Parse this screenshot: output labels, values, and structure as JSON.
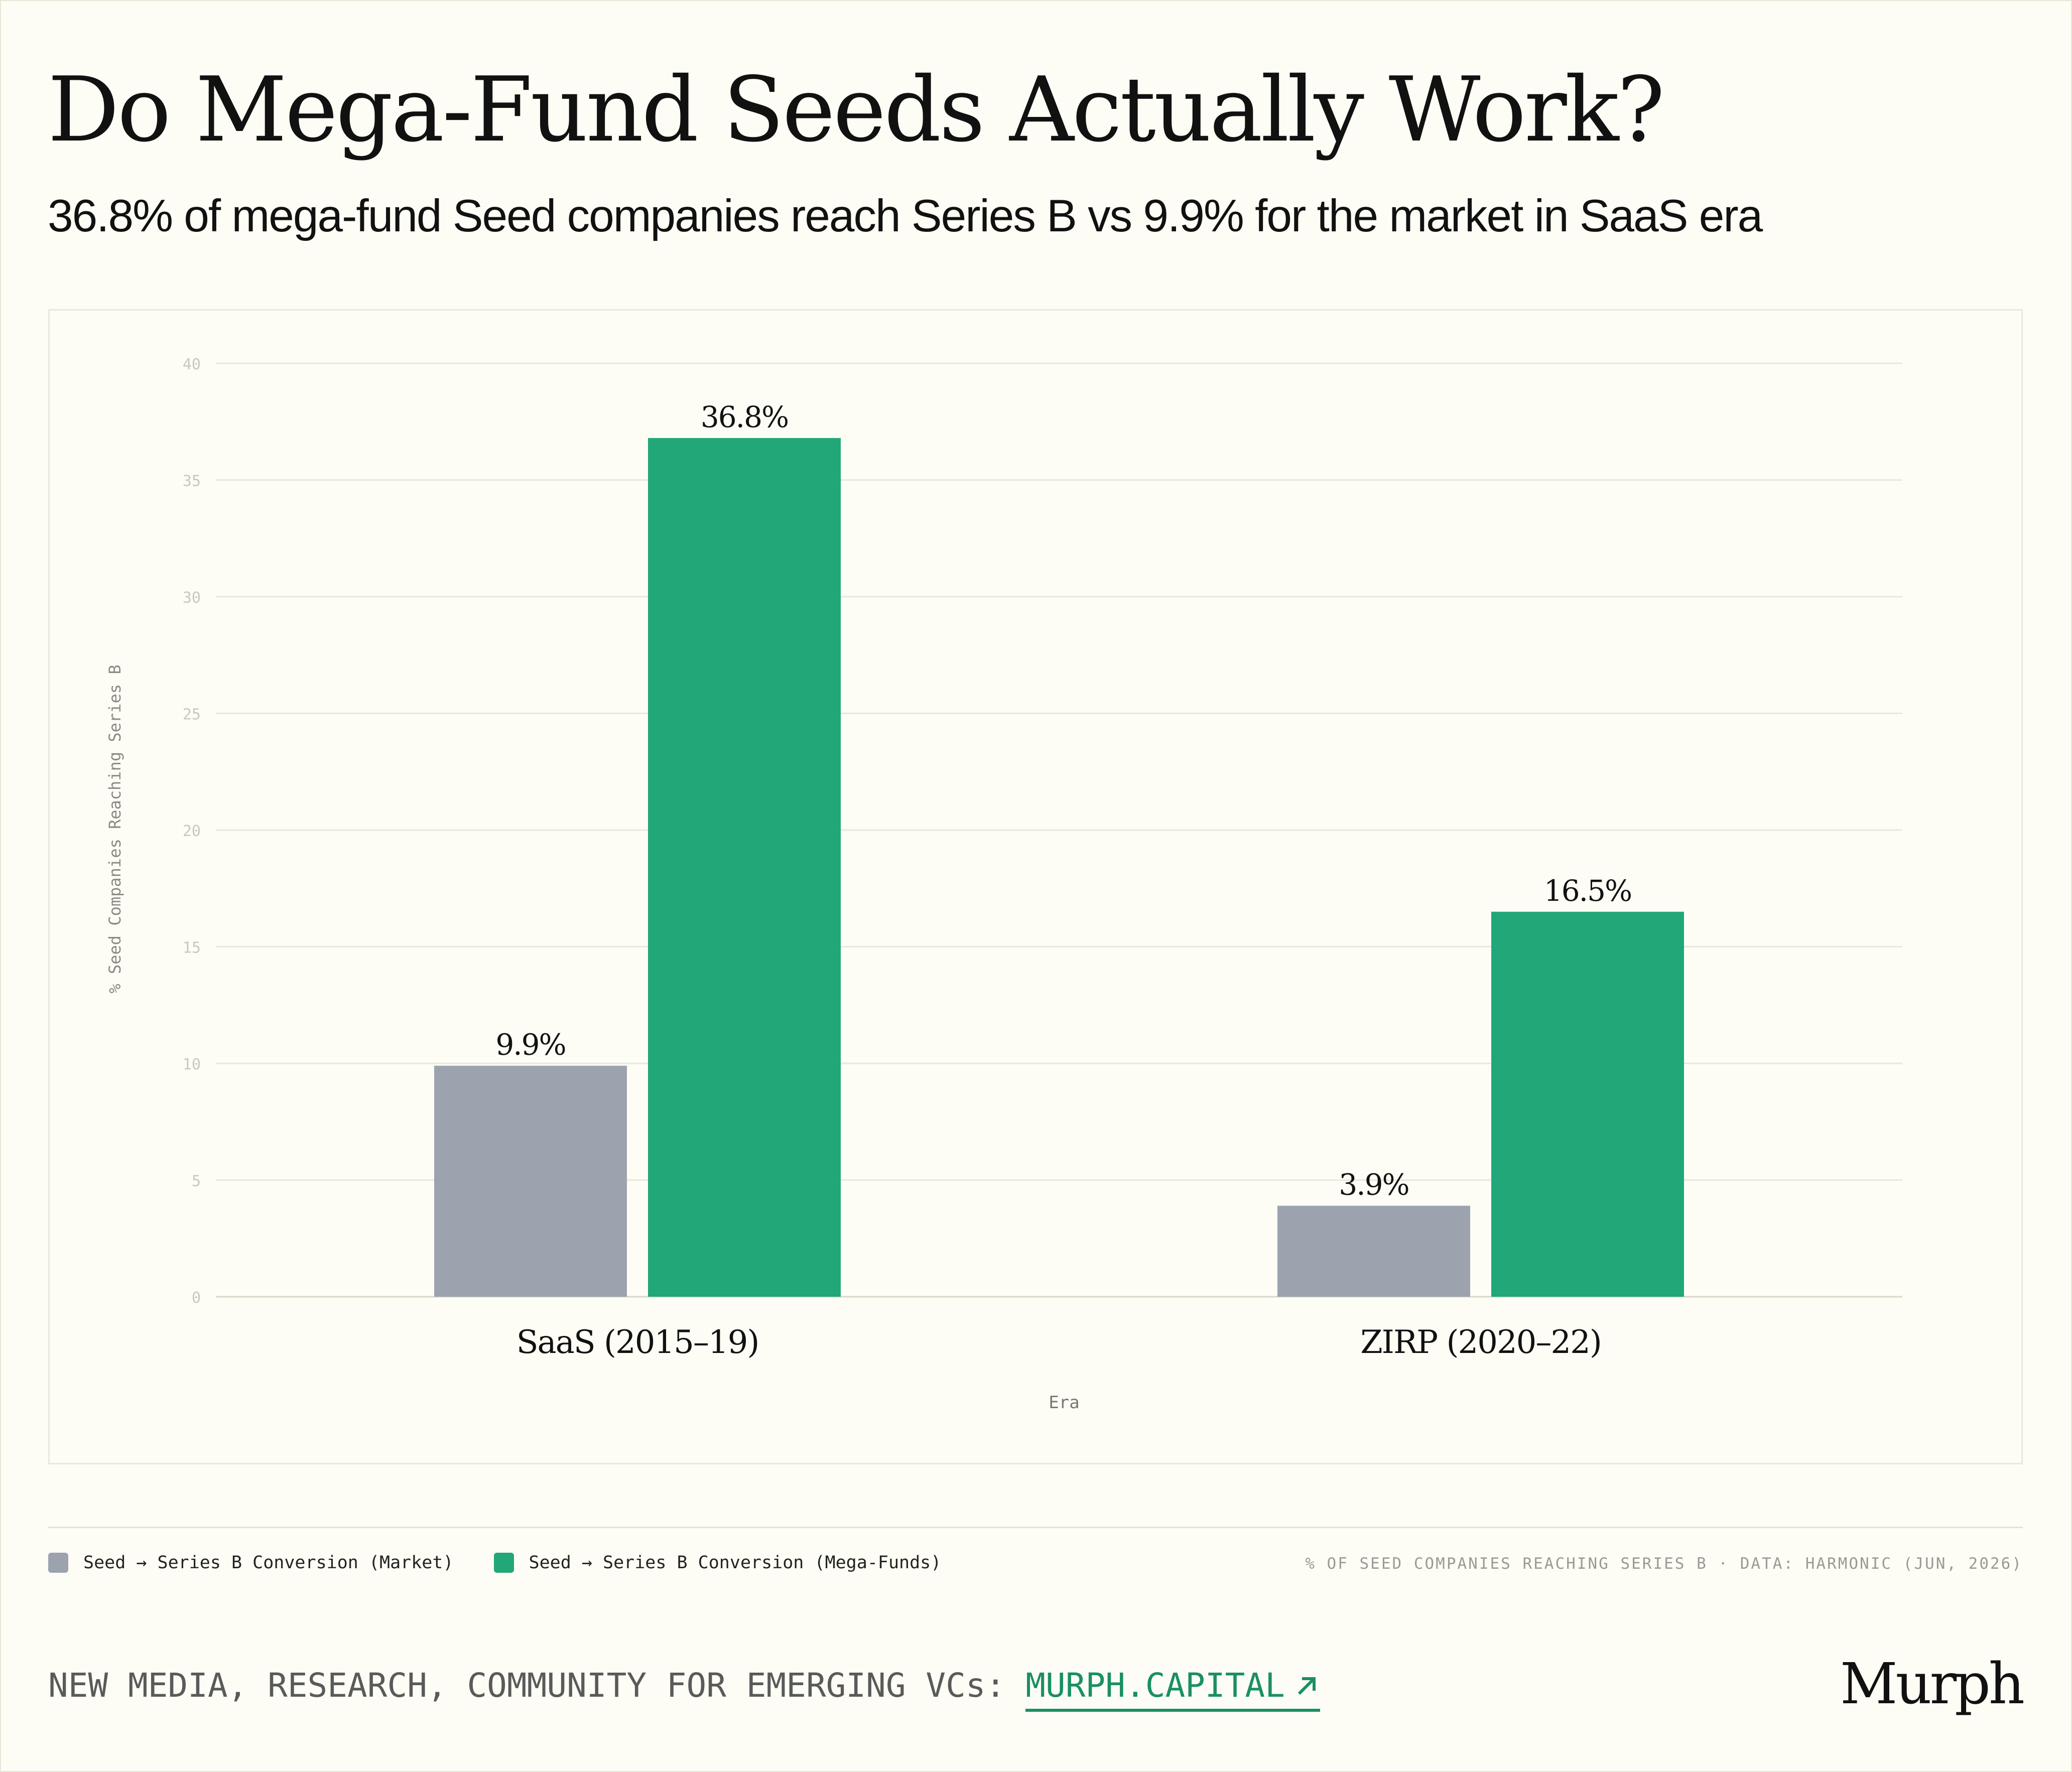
{
  "title": "Do Mega-Fund Seeds Actually Work?",
  "subtitle": "36.8% of mega-fund Seed companies reach Series B vs 9.9% for the market in SaaS era",
  "colors": {
    "market": "#9ca3af",
    "mega": "#22a779",
    "link": "#1a8f64",
    "grid": "#e9e8da"
  },
  "chart_data": {
    "type": "bar",
    "categories": [
      "SaaS (2015–19)",
      "ZIRP (2020–22)"
    ],
    "series": [
      {
        "name": "Seed → Series B Conversion (Market)",
        "values": [
          9.9,
          3.9
        ],
        "labels": [
          "9.9%",
          "3.9%"
        ]
      },
      {
        "name": "Seed → Series B Conversion (Mega-Funds)",
        "values": [
          36.8,
          16.5
        ],
        "labels": [
          "36.8%",
          "16.5%"
        ]
      }
    ],
    "xlabel": "Era",
    "ylabel": "% Seed Companies Reaching Series B",
    "ylim": [
      0,
      40
    ],
    "yticks": [
      "0",
      "5",
      "10",
      "15",
      "20",
      "25",
      "30",
      "35",
      "40"
    ],
    "grid": true,
    "legend": "bottom-left"
  },
  "legend": {
    "market_label": "Seed → Series B Conversion (Market)",
    "mega_label": "Seed → Series B Conversion (Mega-Funds)"
  },
  "source": "% OF SEED COMPANIES REACHING SERIES B · DATA: HARMONIC (JUN, 2026)",
  "footer": {
    "text": "NEW MEDIA, RESEARCH, COMMUNITY FOR EMERGING VCs:",
    "link": "MURPH.CAPITAL",
    "link_icon": "arrow-up-right-icon"
  },
  "logo": "Murph"
}
